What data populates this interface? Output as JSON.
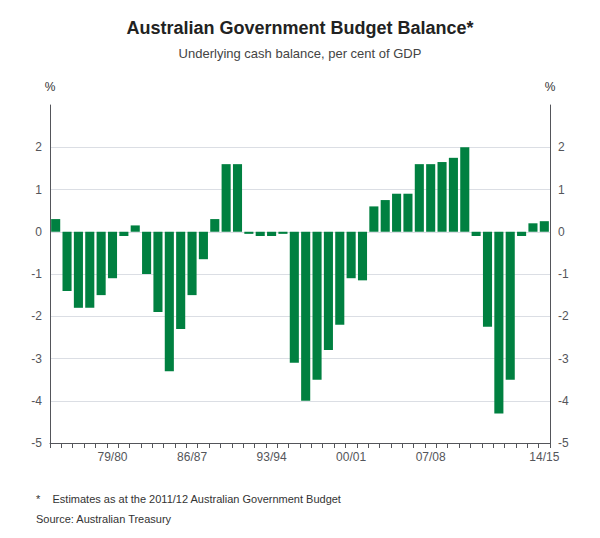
{
  "chart_data": {
    "type": "bar",
    "title": "Australian Government Budget Balance*",
    "subtitle": "Underlying cash balance, per cent of GDP",
    "footnote": "*    Estimates as at the 2011/12 Australian Government Budget",
    "source": "Source: Australian Treasury",
    "ylabel": "%",
    "y2label": "%",
    "color": "#008040",
    "categories": [
      null,
      null,
      null,
      null,
      null,
      "79/80",
      null,
      null,
      null,
      null,
      null,
      null,
      "86/87",
      null,
      null,
      null,
      null,
      null,
      null,
      "93/94",
      null,
      null,
      null,
      null,
      null,
      null,
      "00/01",
      null,
      null,
      null,
      null,
      null,
      null,
      "07/08",
      null,
      null,
      null,
      null,
      null,
      null,
      null,
      null,
      null,
      "14/15"
    ],
    "values": [
      0.3,
      -1.4,
      -1.8,
      -1.8,
      -1.5,
      -1.1,
      -0.1,
      0.15,
      -1.0,
      -1.9,
      -3.3,
      -2.3,
      -1.5,
      -0.65,
      0.3,
      1.6,
      1.6,
      -0.05,
      -0.1,
      -0.1,
      -0.05,
      -3.1,
      -4.0,
      -3.5,
      -2.8,
      -2.2,
      -1.1,
      -1.15,
      0.6,
      0.75,
      0.9,
      0.9,
      1.6,
      1.6,
      1.65,
      1.75,
      2.0,
      -0.1,
      -2.25,
      -4.3,
      -3.5,
      -0.1,
      0.2,
      0.25
    ],
    "ylim": [
      -5,
      3
    ],
    "yticks": [
      -5,
      -4,
      -3,
      -2,
      -1,
      0,
      1,
      2
    ],
    "y2lim": [
      -5,
      3
    ],
    "y2ticks": [
      -5,
      -4,
      -3,
      -2,
      -1,
      0,
      1,
      2
    ],
    "grid": true
  }
}
